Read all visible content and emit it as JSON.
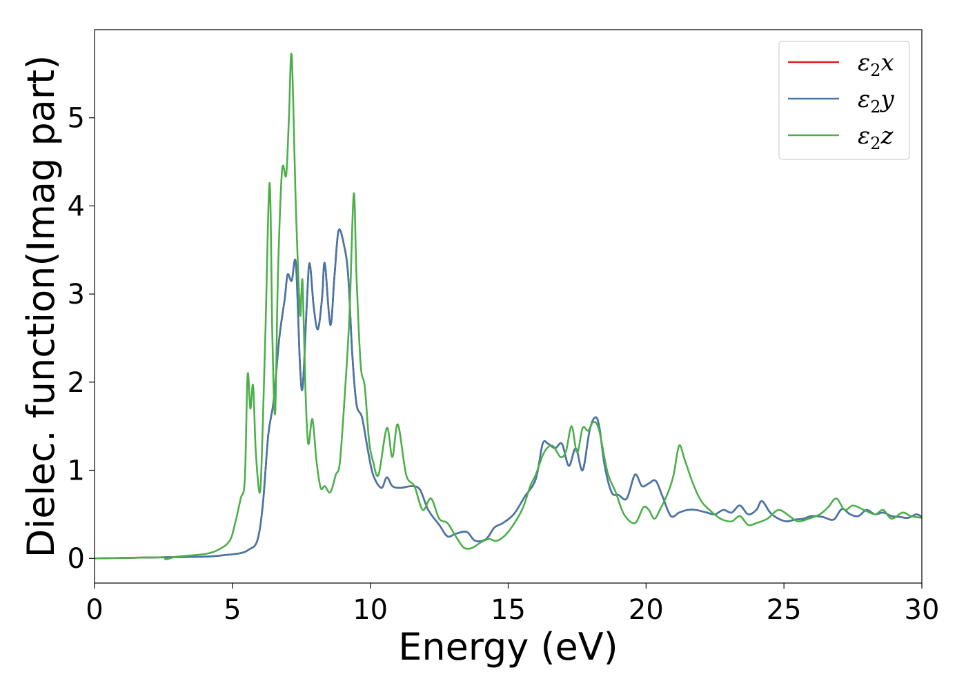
{
  "chart_data": {
    "type": "line",
    "title": "",
    "xlabel": "Energy (eV)",
    "ylabel": "Dielec. function(Imag part)",
    "xlim": [
      0,
      30
    ],
    "ylim": [
      -0.28,
      6.0
    ],
    "xticks": [
      0,
      5,
      10,
      15,
      20,
      25,
      30
    ],
    "xtick_labels": [
      "0",
      "5",
      "10",
      "15",
      "20",
      "25",
      "30"
    ],
    "yticks": [
      0,
      1,
      2,
      3,
      4,
      5
    ],
    "ytick_labels": [
      "0",
      "1",
      "2",
      "3",
      "4",
      "5"
    ],
    "grid": false,
    "legend_position": "top-right",
    "series": [
      {
        "name": "ε2x",
        "legend": {
          "base": "ε",
          "sub": "2",
          "tail": "x"
        },
        "color": "#e41a1c",
        "x": [
          0,
          2,
          4,
          4.8,
          5.3,
          5.6,
          5.9,
          6.1,
          6.3,
          6.5,
          6.7,
          6.9,
          7.0,
          7.15,
          7.3,
          7.45,
          7.55,
          7.7,
          7.8,
          7.95,
          8.1,
          8.25,
          8.35,
          8.55,
          8.7,
          8.85,
          9.05,
          9.2,
          9.35,
          9.5,
          9.7,
          9.9,
          10.1,
          10.4,
          10.6,
          10.8,
          11.1,
          11.5,
          11.8,
          12.1,
          12.5,
          12.8,
          13.1,
          13.5,
          13.8,
          14.2,
          14.5,
          14.8,
          15.2,
          15.6,
          16.0,
          16.25,
          16.45,
          16.7,
          16.95,
          17.2,
          17.45,
          17.7,
          17.95,
          18.15,
          18.3,
          18.5,
          18.75,
          19.0,
          19.3,
          19.6,
          19.85,
          20.1,
          20.35,
          20.6,
          20.9,
          21.2,
          21.5,
          21.8,
          22.2,
          22.5,
          22.8,
          23.1,
          23.4,
          23.7,
          24.0,
          24.2,
          24.5,
          24.8,
          25.1,
          25.4,
          25.7,
          26.0,
          26.4,
          26.8,
          27.1,
          27.4,
          27.7,
          28.0,
          28.3,
          28.6,
          28.9,
          29.2,
          29.5,
          29.8,
          30.0
        ],
        "y": [
          0.0,
          0.01,
          0.02,
          0.04,
          0.06,
          0.1,
          0.2,
          0.6,
          1.4,
          1.8,
          2.5,
          2.95,
          3.22,
          3.15,
          3.35,
          2.2,
          1.95,
          2.9,
          3.35,
          2.85,
          2.6,
          2.95,
          3.35,
          2.65,
          3.2,
          3.72,
          3.55,
          3.2,
          2.3,
          1.75,
          1.6,
          1.25,
          0.95,
          0.8,
          0.92,
          0.82,
          0.8,
          0.82,
          0.78,
          0.55,
          0.38,
          0.25,
          0.28,
          0.3,
          0.2,
          0.22,
          0.35,
          0.4,
          0.5,
          0.7,
          0.9,
          1.3,
          1.3,
          1.25,
          1.3,
          1.05,
          1.25,
          1.0,
          1.45,
          1.6,
          1.5,
          1.05,
          0.75,
          0.72,
          0.68,
          0.95,
          0.82,
          0.85,
          0.88,
          0.7,
          0.48,
          0.52,
          0.55,
          0.55,
          0.52,
          0.5,
          0.55,
          0.52,
          0.6,
          0.5,
          0.55,
          0.65,
          0.52,
          0.45,
          0.42,
          0.44,
          0.45,
          0.48,
          0.47,
          0.44,
          0.56,
          0.5,
          0.48,
          0.55,
          0.5,
          0.52,
          0.48,
          0.47,
          0.46,
          0.5,
          0.47
        ]
      },
      {
        "name": "ε2y",
        "legend": {
          "base": "ε",
          "sub": "2",
          "tail": "y"
        },
        "color": "#4477aa",
        "x": [
          0,
          2,
          4,
          4.8,
          5.3,
          5.6,
          5.9,
          6.1,
          6.3,
          6.5,
          6.7,
          6.9,
          7.0,
          7.15,
          7.3,
          7.45,
          7.55,
          7.7,
          7.8,
          7.95,
          8.1,
          8.25,
          8.35,
          8.55,
          8.7,
          8.85,
          9.05,
          9.2,
          9.35,
          9.5,
          9.7,
          9.9,
          10.1,
          10.4,
          10.6,
          10.8,
          11.1,
          11.5,
          11.8,
          12.1,
          12.5,
          12.8,
          13.1,
          13.5,
          13.8,
          14.2,
          14.5,
          14.8,
          15.2,
          15.6,
          16.0,
          16.25,
          16.45,
          16.7,
          16.95,
          17.2,
          17.45,
          17.7,
          17.95,
          18.15,
          18.3,
          18.5,
          18.75,
          19.0,
          19.3,
          19.6,
          19.85,
          20.1,
          20.35,
          20.6,
          20.9,
          21.2,
          21.5,
          21.8,
          22.2,
          22.5,
          22.8,
          23.1,
          23.4,
          23.7,
          24.0,
          24.2,
          24.5,
          24.8,
          25.1,
          25.4,
          25.7,
          26.0,
          26.4,
          26.8,
          27.1,
          27.4,
          27.7,
          28.0,
          28.3,
          28.6,
          28.9,
          29.2,
          29.5,
          29.8,
          30.0
        ],
        "y": [
          0.0,
          0.01,
          0.02,
          0.04,
          0.06,
          0.1,
          0.2,
          0.6,
          1.4,
          1.8,
          2.5,
          2.95,
          3.22,
          3.15,
          3.35,
          2.2,
          1.95,
          2.9,
          3.35,
          2.85,
          2.6,
          2.95,
          3.35,
          2.65,
          3.2,
          3.72,
          3.55,
          3.2,
          2.3,
          1.75,
          1.6,
          1.25,
          0.95,
          0.8,
          0.92,
          0.82,
          0.8,
          0.82,
          0.78,
          0.55,
          0.38,
          0.25,
          0.28,
          0.3,
          0.2,
          0.22,
          0.35,
          0.4,
          0.5,
          0.7,
          0.9,
          1.3,
          1.3,
          1.25,
          1.3,
          1.05,
          1.25,
          1.0,
          1.45,
          1.6,
          1.5,
          1.05,
          0.75,
          0.72,
          0.68,
          0.95,
          0.82,
          0.85,
          0.88,
          0.7,
          0.48,
          0.52,
          0.55,
          0.55,
          0.52,
          0.5,
          0.55,
          0.52,
          0.6,
          0.5,
          0.55,
          0.65,
          0.52,
          0.45,
          0.42,
          0.44,
          0.45,
          0.48,
          0.47,
          0.44,
          0.56,
          0.5,
          0.48,
          0.55,
          0.5,
          0.52,
          0.48,
          0.47,
          0.46,
          0.5,
          0.47
        ]
      },
      {
        "name": "ε2z",
        "legend": {
          "base": "ε",
          "sub": "2",
          "tail": "z"
        },
        "color": "#4daf4a",
        "x": [
          0,
          2,
          2.5,
          2.6,
          3,
          4,
          4.5,
          4.9,
          5.1,
          5.3,
          5.45,
          5.55,
          5.65,
          5.75,
          5.85,
          6.0,
          6.1,
          6.2,
          6.35,
          6.45,
          6.55,
          6.65,
          6.8,
          6.95,
          7.05,
          7.15,
          7.3,
          7.45,
          7.5,
          7.55,
          7.65,
          7.75,
          7.9,
          8.05,
          8.2,
          8.35,
          8.55,
          8.75,
          8.9,
          9.1,
          9.25,
          9.4,
          9.5,
          9.65,
          9.8,
          9.95,
          10.1,
          10.3,
          10.6,
          10.8,
          11.0,
          11.3,
          11.6,
          11.9,
          12.2,
          12.5,
          12.8,
          13.1,
          13.4,
          13.7,
          14.0,
          14.3,
          14.6,
          15.0,
          15.5,
          15.8,
          16.0,
          16.3,
          16.6,
          16.9,
          17.1,
          17.3,
          17.5,
          17.7,
          17.9,
          18.1,
          18.3,
          18.6,
          18.9,
          19.2,
          19.6,
          19.9,
          20.1,
          20.3,
          20.5,
          20.8,
          21.0,
          21.2,
          21.4,
          21.7,
          22.0,
          22.3,
          22.7,
          23.1,
          23.4,
          23.7,
          24.0,
          24.4,
          24.8,
          25.2,
          25.5,
          25.9,
          26.3,
          26.6,
          26.9,
          27.2,
          27.5,
          27.9,
          28.3,
          28.6,
          28.9,
          29.3,
          29.6,
          30.0
        ],
        "y": [
          0.0,
          0.01,
          0.01,
          -0.01,
          0.02,
          0.05,
          0.1,
          0.2,
          0.4,
          0.68,
          0.9,
          2.08,
          1.7,
          1.96,
          1.2,
          0.75,
          1.5,
          2.6,
          4.26,
          2.5,
          1.65,
          3.2,
          4.4,
          4.35,
          5.0,
          5.7,
          4.0,
          2.8,
          3.0,
          3.1,
          1.9,
          1.3,
          1.58,
          1.1,
          0.8,
          0.82,
          0.75,
          0.95,
          1.1,
          1.98,
          2.8,
          4.14,
          3.2,
          2.2,
          1.95,
          1.35,
          1.1,
          0.95,
          1.48,
          1.15,
          1.52,
          0.95,
          0.82,
          0.55,
          0.68,
          0.45,
          0.4,
          0.25,
          0.12,
          0.12,
          0.18,
          0.22,
          0.2,
          0.3,
          0.55,
          0.82,
          0.95,
          1.2,
          1.28,
          1.15,
          1.22,
          1.5,
          1.2,
          1.48,
          1.45,
          1.55,
          1.45,
          0.98,
          0.75,
          0.5,
          0.4,
          0.58,
          0.55,
          0.45,
          0.55,
          0.75,
          0.95,
          1.28,
          1.12,
          0.85,
          0.65,
          0.55,
          0.45,
          0.42,
          0.48,
          0.38,
          0.4,
          0.45,
          0.55,
          0.48,
          0.42,
          0.45,
          0.5,
          0.58,
          0.68,
          0.55,
          0.6,
          0.55,
          0.5,
          0.55,
          0.45,
          0.52,
          0.48,
          0.46
        ]
      }
    ]
  }
}
